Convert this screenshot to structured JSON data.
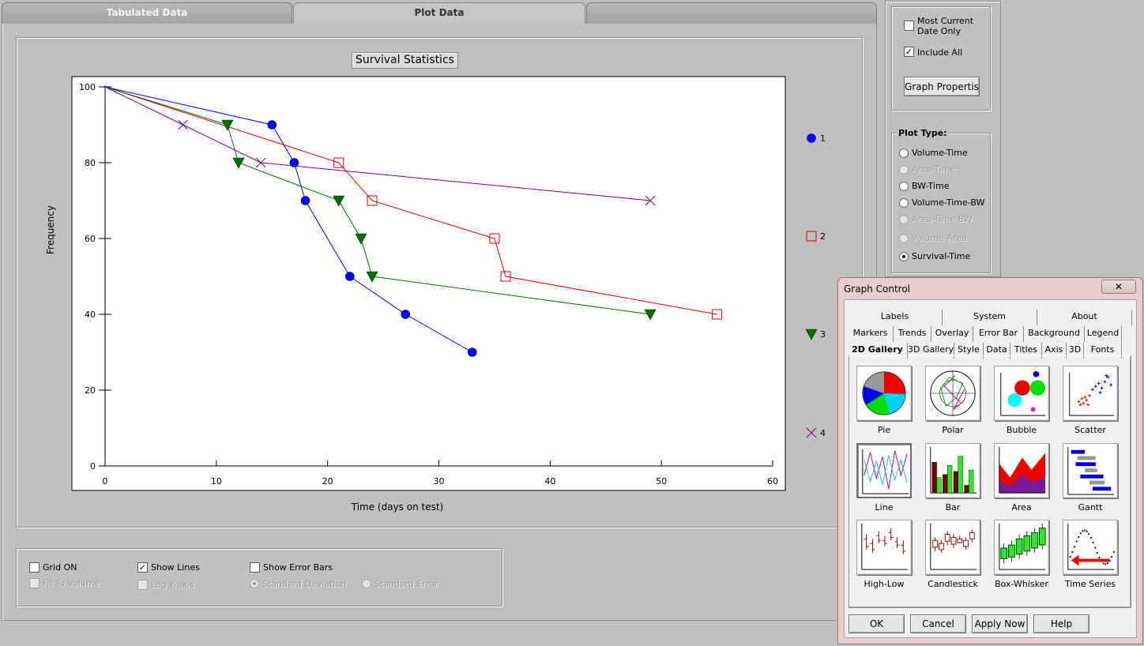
{
  "tabs": [
    {
      "label": "Tabulated Data",
      "underline_char": "D"
    },
    {
      "label": "Plot Data",
      "underline_char": "D"
    },
    {
      "label": ""
    }
  ],
  "chart_data": {
    "type": "line",
    "title": "Survival Statistics",
    "xlabel": "Time (days on test)",
    "ylabel": "Frequency",
    "xlim": [
      0,
      60
    ],
    "ylim": [
      0,
      100
    ],
    "xticks": [
      0,
      10,
      20,
      30,
      40,
      50,
      60
    ],
    "yticks": [
      0,
      20,
      40,
      60,
      80,
      100
    ],
    "grid": false,
    "legend_position": "right",
    "series": [
      {
        "name": "1",
        "color": "#0000ff",
        "marker": "circle",
        "x": [
          0,
          15,
          17,
          18,
          22,
          27,
          33
        ],
        "y": [
          100,
          90,
          80,
          70,
          50,
          40,
          30
        ]
      },
      {
        "name": "2",
        "color": "#dd0000",
        "marker": "square",
        "x": [
          0,
          21,
          24,
          35,
          36,
          55
        ],
        "y": [
          100,
          80,
          70,
          60,
          50,
          40
        ]
      },
      {
        "name": "3",
        "color": "#007000",
        "marker": "triangle-down",
        "x": [
          0,
          11,
          12,
          21,
          23,
          24,
          49
        ],
        "y": [
          100,
          90,
          80,
          70,
          60,
          50,
          40
        ]
      },
      {
        "name": "4",
        "color": "#800080",
        "marker": "cross",
        "x": [
          0,
          7,
          14,
          49
        ],
        "y": [
          100,
          90,
          80,
          70
        ]
      }
    ]
  },
  "options": {
    "grid_on": {
      "label": "Grid ON",
      "checked": false
    },
    "show_lines": {
      "label": "Show Lines",
      "checked": true
    },
    "show_error_bars": {
      "label": "Show Error Bars",
      "checked": false
    },
    "fit_to_volume": {
      "label": "Fit To Volume",
      "checked": false
    },
    "log_y_axis": {
      "label": "Log Y-axis",
      "checked": false
    },
    "standard_deviation": {
      "label": "Standard Deviation",
      "selected": true
    },
    "standard_error": {
      "label": "Standard Error",
      "selected": false
    }
  },
  "right_panel": {
    "most_current": {
      "label_line1": "Most Current",
      "label_line2": "Date Only",
      "checked": false
    },
    "include_all": {
      "label": "Include All",
      "checked": true
    },
    "graph_properties_button": "Graph Propertis",
    "plot_type_title": "Plot Type:",
    "plot_types": [
      {
        "label": "Volume-Time",
        "enabled": true,
        "selected": false
      },
      {
        "label": "Area-Time",
        "enabled": false,
        "selected": false
      },
      {
        "label": "BW-Time",
        "enabled": true,
        "selected": false
      },
      {
        "label": "Volume-Time-BW",
        "enabled": true,
        "selected": false
      },
      {
        "label": "Area-Time-BW",
        "enabled": false,
        "selected": false
      },
      {
        "label": "Volume-Area",
        "enabled": false,
        "selected": false
      },
      {
        "label": "Survival-Time",
        "enabled": true,
        "selected": true
      }
    ]
  },
  "graph_control": {
    "title": "Graph Control",
    "close_glyph": "✕",
    "tab_rows": [
      [
        "Labels",
        "System",
        "About"
      ],
      [
        "Markers",
        "Trends",
        "Overlay",
        "Error Bar",
        "Background",
        "Legend"
      ],
      [
        "2D Gallery",
        "3D Gallery",
        "Style",
        "Data",
        "Titles",
        "Axis",
        "3D",
        "Fonts"
      ]
    ],
    "active_tab": "2D Gallery",
    "gallery": [
      {
        "label": "Pie",
        "icon": "pie-chart-icon"
      },
      {
        "label": "Polar",
        "icon": "polar-chart-icon"
      },
      {
        "label": "Bubble",
        "icon": "bubble-chart-icon"
      },
      {
        "label": "Scatter",
        "icon": "scatter-chart-icon"
      },
      {
        "label": "Line",
        "icon": "line-chart-icon"
      },
      {
        "label": "Bar",
        "icon": "bar-chart-icon"
      },
      {
        "label": "Area",
        "icon": "area-chart-icon"
      },
      {
        "label": "Gantt",
        "icon": "gantt-chart-icon"
      },
      {
        "label": "High-Low",
        "icon": "high-low-chart-icon"
      },
      {
        "label": "Candlestick",
        "icon": "candlestick-chart-icon"
      },
      {
        "label": "Box-Whisker",
        "icon": "box-whisker-chart-icon"
      },
      {
        "label": "Time Series",
        "icon": "time-series-chart-icon"
      }
    ],
    "selected_gallery": "Line",
    "buttons": {
      "ok": "OK",
      "cancel": "Cancel",
      "apply": "Apply Now",
      "help": "Help"
    }
  }
}
